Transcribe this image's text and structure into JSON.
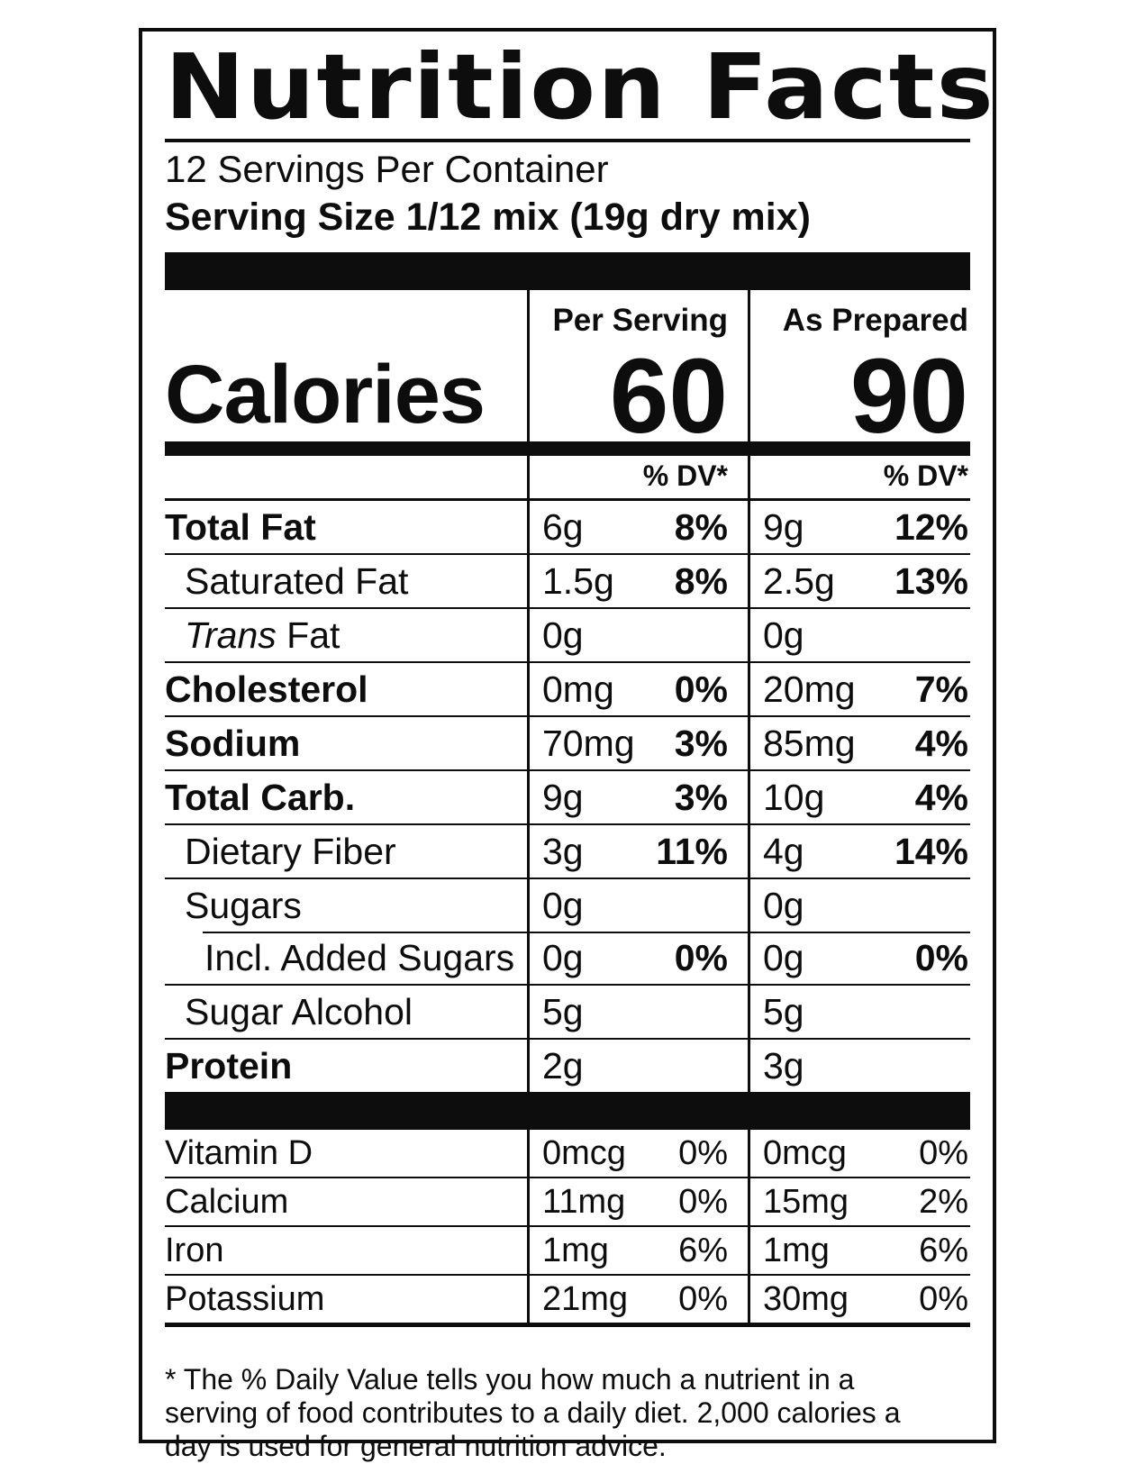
{
  "label": {
    "title": "Nutrition Facts",
    "servings_per_container": "12 Servings Per Container",
    "serving_size": "Serving Size 1/12 mix (19g dry mix)",
    "columns": {
      "per_serving": "Per Serving",
      "as_prepared": "As Prepared"
    },
    "calories": {
      "label": "Calories",
      "per_serving": "60",
      "as_prepared": "90"
    },
    "dv_header": "% DV*",
    "nutrients": [
      {
        "label": "Total Fat",
        "bold": true,
        "indent": 0,
        "top_divider": "none",
        "ps": {
          "amount": "6g",
          "dv": "8%"
        },
        "ap": {
          "amount": "9g",
          "dv": "12%"
        },
        "dv_bold": true
      },
      {
        "label": "Saturated Fat",
        "bold": false,
        "indent": 1,
        "top_divider": "full",
        "ps": {
          "amount": "1.5g",
          "dv": "8%"
        },
        "ap": {
          "amount": "2.5g",
          "dv": "13%"
        },
        "dv_bold": true
      },
      {
        "label": "Trans Fat",
        "italic_prefix": "Trans",
        "label_rest": "Fat",
        "bold": false,
        "indent": 1,
        "top_divider": "full",
        "ps": {
          "amount": "0g"
        },
        "ap": {
          "amount": "0g"
        },
        "dv_bold": false
      },
      {
        "label": "Cholesterol",
        "bold": true,
        "indent": 0,
        "top_divider": "full",
        "ps": {
          "amount": "0mg",
          "dv": "0%"
        },
        "ap": {
          "amount": "20mg",
          "dv": "7%"
        },
        "dv_bold": true
      },
      {
        "label": "Sodium",
        "bold": true,
        "indent": 0,
        "top_divider": "full",
        "ps": {
          "amount": "70mg",
          "dv": "3%"
        },
        "ap": {
          "amount": "85mg",
          "dv": "4%"
        },
        "dv_bold": true
      },
      {
        "label": "Total Carb.",
        "bold": true,
        "indent": 0,
        "top_divider": "full",
        "ps": {
          "amount": "9g",
          "dv": "3%"
        },
        "ap": {
          "amount": "10g",
          "dv": "4%"
        },
        "dv_bold": true
      },
      {
        "label": "Dietary Fiber",
        "bold": false,
        "indent": 1,
        "top_divider": "full",
        "ps": {
          "amount": "3g",
          "dv": "11%"
        },
        "ap": {
          "amount": "4g",
          "dv": "14%"
        },
        "dv_bold": true
      },
      {
        "label": "Sugars",
        "bold": false,
        "indent": 1,
        "top_divider": "full",
        "ps": {
          "amount": "0g"
        },
        "ap": {
          "amount": "0g"
        },
        "dv_bold": false
      },
      {
        "label": "Incl. Added Sugars",
        "bold": false,
        "indent": 2,
        "top_divider": "indent",
        "ps": {
          "amount": "0g",
          "dv": "0%"
        },
        "ap": {
          "amount": "0g",
          "dv": "0%"
        },
        "dv_bold": true
      },
      {
        "label": "Sugar Alcohol",
        "bold": false,
        "indent": 1,
        "top_divider": "full",
        "ps": {
          "amount": "5g"
        },
        "ap": {
          "amount": "5g"
        },
        "dv_bold": false
      },
      {
        "label": "Protein",
        "bold": true,
        "indent": 0,
        "top_divider": "full",
        "ps": {
          "amount": "2g"
        },
        "ap": {
          "amount": "3g"
        },
        "dv_bold": false
      }
    ],
    "micronutrients": [
      {
        "label": "Vitamin D",
        "top_divider": "none",
        "ps": {
          "amount": "0mcg",
          "dv": "0%"
        },
        "ap": {
          "amount": "0mcg",
          "dv": "0%"
        }
      },
      {
        "label": "Calcium",
        "top_divider": "full",
        "ps": {
          "amount": "11mg",
          "dv": "0%"
        },
        "ap": {
          "amount": "15mg",
          "dv": "2%"
        }
      },
      {
        "label": "Iron",
        "top_divider": "full",
        "ps": {
          "amount": "1mg",
          "dv": "6%"
        },
        "ap": {
          "amount": "1mg",
          "dv": "6%"
        }
      },
      {
        "label": "Potassium",
        "top_divider": "full",
        "ps": {
          "amount": "21mg",
          "dv": "0%"
        },
        "ap": {
          "amount": "30mg",
          "dv": "0%"
        }
      }
    ],
    "footnote": "* The % Daily Value tells you how much a nutrient in a serving of food contributes to a daily diet. 2,000 calories a day is used for general nutrition advice.",
    "ink_color": "#0d0d0d"
  }
}
